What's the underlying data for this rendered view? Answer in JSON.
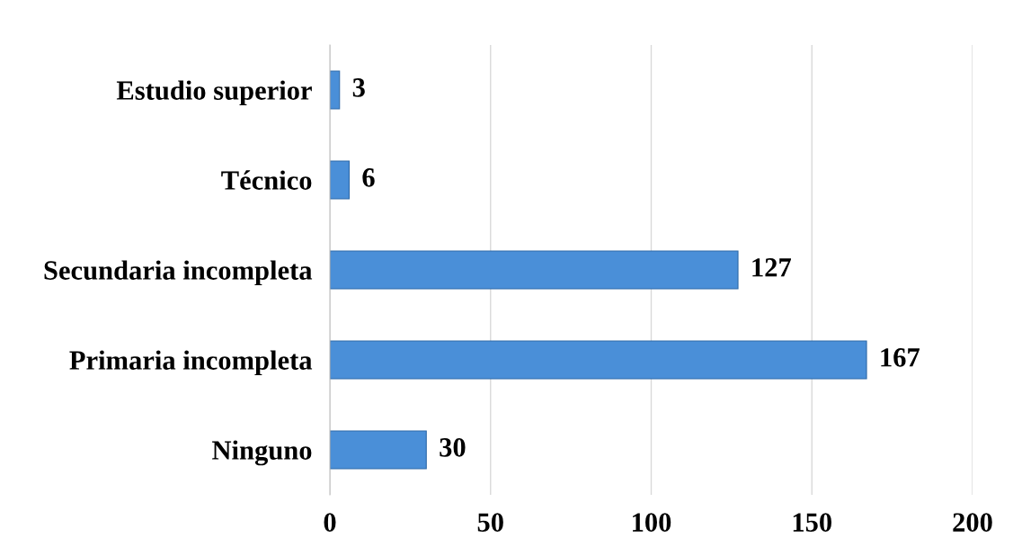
{
  "chart_data": {
    "type": "bar",
    "orientation": "horizontal",
    "categories": [
      "Estudio superior",
      "Técnico",
      "Secundaria incompleta",
      "Primaria incompleta",
      "Ninguno"
    ],
    "values": [
      3,
      6,
      127,
      167,
      30
    ],
    "color": "#4a8fd8",
    "xlim": [
      0,
      200
    ],
    "xticks": [
      0,
      50,
      100,
      150,
      200
    ],
    "grid": "x",
    "data_labels": true
  }
}
